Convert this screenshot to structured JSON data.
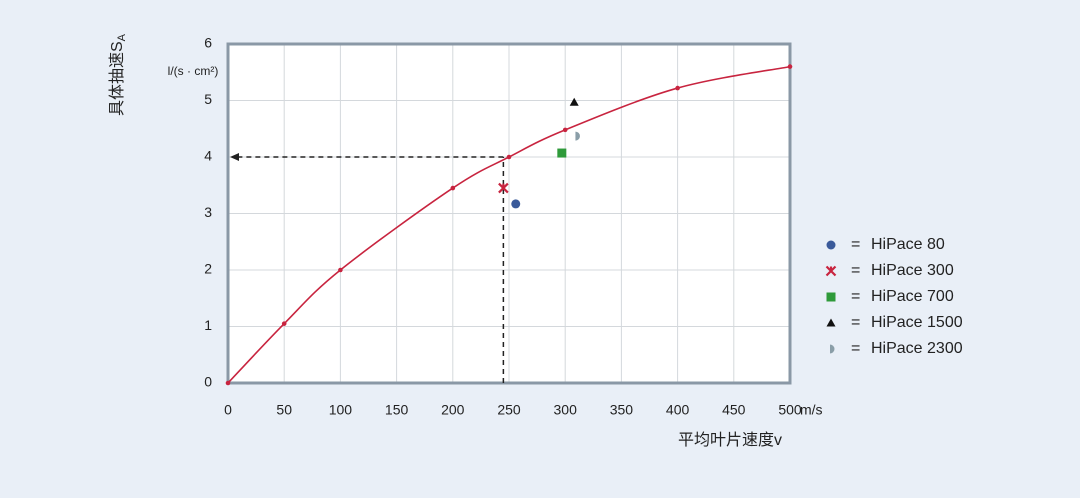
{
  "chart_data": {
    "type": "scatter",
    "y_label": "具体抽速S",
    "y_label_sub": "A",
    "y_unit": "l/(s · cm²)",
    "x_label": "平均叶片速度v",
    "x_unit": "m/s",
    "xlim": [
      0,
      500
    ],
    "xticks": [
      0,
      50,
      100,
      150,
      200,
      250,
      300,
      350,
      400,
      450,
      500
    ],
    "ylim": [
      0,
      6
    ],
    "yticks": [
      0,
      1,
      2,
      3,
      4,
      5,
      6
    ],
    "grid": true,
    "curve": {
      "color": "#c8243f",
      "x": [
        0,
        50,
        100,
        200,
        250,
        300,
        400,
        500
      ],
      "y": [
        0,
        1.05,
        2.0,
        3.45,
        4.0,
        4.48,
        5.22,
        5.6
      ]
    },
    "reference": {
      "x": 245,
      "y": 4
    },
    "legend_separator": "=",
    "series": [
      {
        "name": "HiPace 80",
        "color": "#3a5a9a",
        "marker": "circle",
        "x": [
          256
        ],
        "values": [
          3.17
        ]
      },
      {
        "name": "HiPace 300",
        "color": "#c8243f",
        "marker": "star",
        "x": [
          245
        ],
        "values": [
          3.45
        ]
      },
      {
        "name": "HiPace 700",
        "color": "#2e9a3a",
        "marker": "square",
        "x": [
          297
        ],
        "values": [
          4.07
        ]
      },
      {
        "name": "HiPace 1500",
        "color": "#111111",
        "marker": "triangle",
        "x": [
          308
        ],
        "values": [
          4.97
        ]
      },
      {
        "name": "HiPace 2300",
        "color": "#8a9ea8",
        "marker": "half-circle",
        "x": [
          310
        ],
        "values": [
          4.37
        ]
      }
    ]
  }
}
